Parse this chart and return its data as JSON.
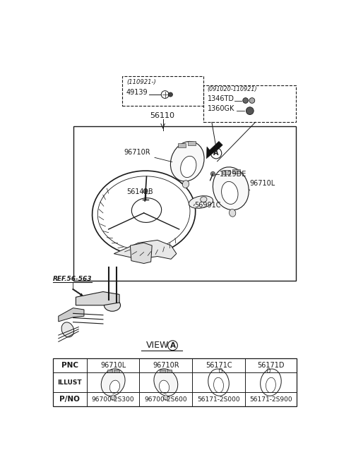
{
  "bg_color": "#ffffff",
  "line_color": "#1a1a1a",
  "fig_width": 4.8,
  "fig_height": 6.55,
  "dpi": 100,
  "box1_label": "(110921-)",
  "box2_label": "(091020-110921)",
  "view_label": "VIEW",
  "ref_label": "REF.56-563",
  "table_pnc": [
    "96710L",
    "96710R",
    "56171C",
    "56171D"
  ],
  "table_pno": [
    "96700-2S300",
    "96700-2S600",
    "56171-2S000",
    "56171-2S900"
  ]
}
